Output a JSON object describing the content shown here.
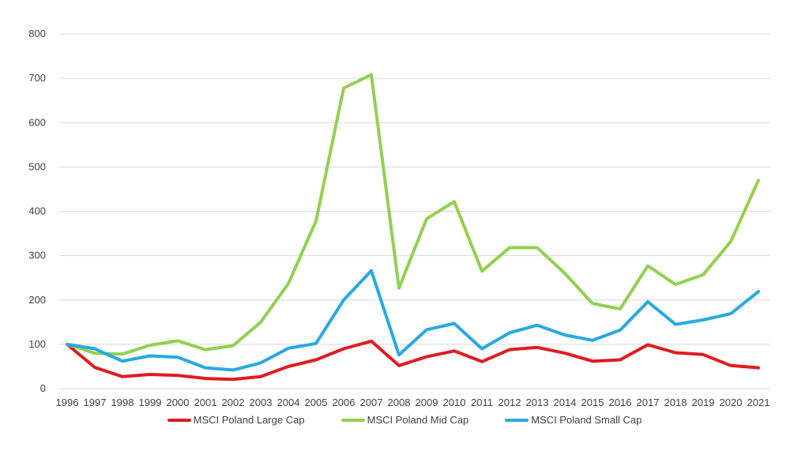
{
  "chart_data": {
    "type": "line",
    "title": "",
    "xlabel": "",
    "ylabel": "",
    "x": [
      1996,
      1997,
      1998,
      1999,
      2000,
      2001,
      2002,
      2003,
      2004,
      2005,
      2006,
      2007,
      2008,
      2009,
      2010,
      2011,
      2012,
      2013,
      2014,
      2015,
      2016,
      2017,
      2018,
      2019,
      2020,
      2021
    ],
    "series": [
      {
        "name": "MSCI Poland Large Cap",
        "color": "#e01b1e",
        "values": [
          100,
          48,
          27,
          32,
          30,
          23,
          21,
          27,
          50,
          65,
          90,
          107,
          52,
          72,
          85,
          61,
          88,
          93,
          80,
          62,
          65,
          99,
          81,
          77,
          52,
          47
        ]
      },
      {
        "name": "MSCI Poland Mid Cap",
        "color": "#92d050",
        "values": [
          100,
          80,
          78,
          98,
          108,
          88,
          97,
          150,
          237,
          378,
          678,
          708,
          227,
          383,
          422,
          265,
          318,
          318,
          260,
          192,
          180,
          277,
          235,
          257,
          332,
          470
        ]
      },
      {
        "name": "MSCI Poland Small Cap",
        "color": "#27a9e1",
        "values": [
          100,
          90,
          62,
          74,
          71,
          47,
          42,
          58,
          91,
          102,
          200,
          266,
          76,
          133,
          147,
          90,
          126,
          143,
          121,
          109,
          132,
          196,
          145,
          155,
          169,
          219
        ]
      }
    ],
    "ylim": [
      0,
      800
    ],
    "ytick_step": 100,
    "yticks": [
      0,
      100,
      200,
      300,
      400,
      500,
      600,
      700,
      800
    ],
    "grid": true,
    "legend_position": "bottom",
    "axis_text_color": "#3f3f3f",
    "gridline_color": "#d9d9d9",
    "line_width": 4
  }
}
